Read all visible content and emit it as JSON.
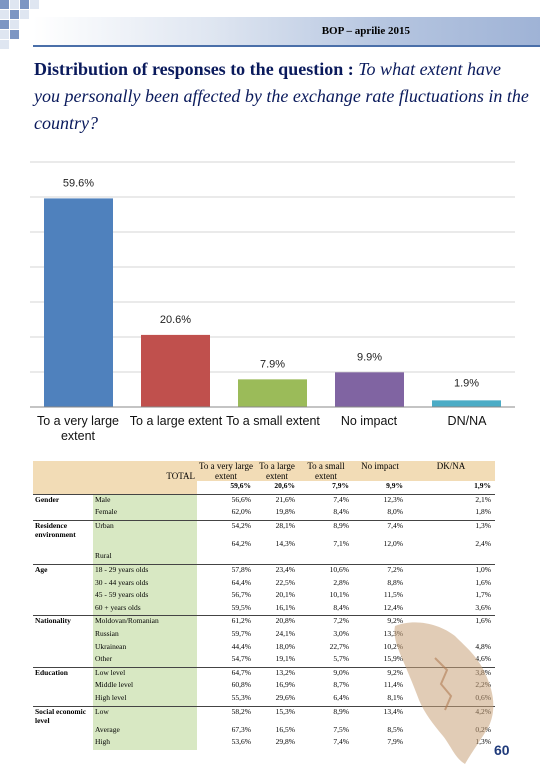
{
  "header": {
    "title": "BOP – aprilie 2015"
  },
  "question": {
    "lead": "Distribution of responses to the question : ",
    "text": "To what extent have you personally been affected by the  exchange rate fluctuations in the country?"
  },
  "chart_data": {
    "type": "bar",
    "categories": [
      "To a very large extent",
      "To a large extent",
      "To a small extent",
      "No impact",
      "DN/NA"
    ],
    "values": [
      59.6,
      20.6,
      7.9,
      9.9,
      1.9
    ],
    "data_labels": [
      "59.6%",
      "20.6%",
      "7.9%",
      "9.9%",
      "1.9%"
    ],
    "colors": [
      "#4f81bd",
      "#c0504d",
      "#9bbb59",
      "#8064a2",
      "#4bacc6"
    ],
    "ylim": [
      0,
      70
    ],
    "grid": true
  },
  "table": {
    "columns": [
      "To a very large extent",
      "To a large extent",
      "To a small extent",
      "No impact",
      "DK/NA"
    ],
    "total_label": "TOTAL",
    "total_values": [
      "59,6%",
      "20,6%",
      "7,9%",
      "9,9%",
      "1,9%"
    ],
    "rows": [
      {
        "group": "Gender",
        "label": "Male",
        "values": [
          "56,6%",
          "21,6%",
          "7,4%",
          "12,3%",
          "2,1%"
        ]
      },
      {
        "group": "",
        "label": "Female",
        "values": [
          "62,0%",
          "19,8%",
          "8,4%",
          "8,0%",
          "1,8%"
        ]
      },
      {
        "group": "Residence environment",
        "label": "Urban",
        "values": [
          "54,2%",
          "28,1%",
          "8,9%",
          "7,4%",
          "1,3%"
        ]
      },
      {
        "group": "",
        "label": "",
        "values": [
          "64,2%",
          "14,3%",
          "7,1%",
          "12,0%",
          "2,4%"
        ]
      },
      {
        "group": "",
        "label": "Rural",
        "values": [
          "",
          "",
          "",
          "",
          ""
        ]
      },
      {
        "group": "Age",
        "label": "18 - 29 years olds",
        "values": [
          "57,8%",
          "23,4%",
          "10,6%",
          "7,2%",
          "1,0%"
        ]
      },
      {
        "group": "",
        "label": "30 - 44 years olds",
        "values": [
          "64,4%",
          "22,5%",
          "2,8%",
          "8,8%",
          "1,6%"
        ]
      },
      {
        "group": "",
        "label": "45 - 59 years olds",
        "values": [
          "56,7%",
          "20,1%",
          "10,1%",
          "11,5%",
          "1,7%"
        ]
      },
      {
        "group": "",
        "label": "60 + years olds",
        "values": [
          "59,5%",
          "16,1%",
          "8,4%",
          "12,4%",
          "3,6%"
        ]
      },
      {
        "group": "Nationality",
        "label": "Moldovan/Romanian",
        "values": [
          "61,2%",
          "20,8%",
          "7,2%",
          "9,2%",
          "1,6%"
        ]
      },
      {
        "group": "",
        "label": "Russian",
        "values": [
          "59,7%",
          "24,1%",
          "3,0%",
          "13,3%",
          ""
        ]
      },
      {
        "group": "",
        "label": "Ukrainean",
        "values": [
          "44,4%",
          "18,0%",
          "22,7%",
          "10,2%",
          "4,8%"
        ]
      },
      {
        "group": "",
        "label": "Other",
        "values": [
          "54,7%",
          "19,1%",
          "5,7%",
          "15,9%",
          "4,6%"
        ]
      },
      {
        "group": "Education",
        "label": "Low level",
        "values": [
          "64,7%",
          "13,2%",
          "9,0%",
          "9,2%",
          "3,8%"
        ]
      },
      {
        "group": "",
        "label": "Middle level",
        "values": [
          "60,8%",
          "16,9%",
          "8,7%",
          "11,4%",
          "2,2%"
        ]
      },
      {
        "group": "",
        "label": "High level",
        "values": [
          "55,3%",
          "29,6%",
          "6,4%",
          "8,1%",
          "0,6%"
        ]
      },
      {
        "group": "Social economic level",
        "label": "Low",
        "values": [
          "58,2%",
          "15,3%",
          "8,9%",
          "13,4%",
          "4,2%"
        ]
      },
      {
        "group": "",
        "label": "Average",
        "values": [
          "67,3%",
          "16,5%",
          "7,5%",
          "8,5%",
          "0,2%"
        ]
      },
      {
        "group": "",
        "label": "High",
        "values": [
          "53,6%",
          "29,8%",
          "7,4%",
          "7,9%",
          "1,3%"
        ]
      }
    ]
  },
  "page_number": "60"
}
